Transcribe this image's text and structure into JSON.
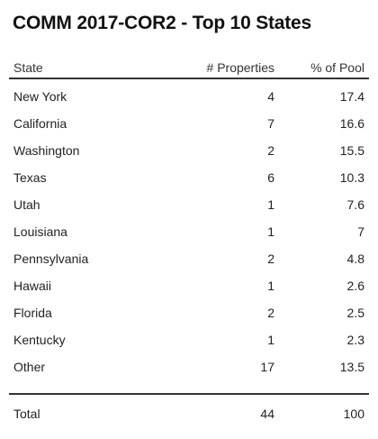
{
  "title": "COMM 2017-COR2 - Top 10 States",
  "columns": {
    "state": "State",
    "properties": "# Properties",
    "pct": "% of Pool"
  },
  "rows": [
    {
      "state": "New York",
      "properties": "4",
      "pct": "17.4"
    },
    {
      "state": "California",
      "properties": "7",
      "pct": "16.6"
    },
    {
      "state": "Washington",
      "properties": "2",
      "pct": "15.5"
    },
    {
      "state": "Texas",
      "properties": "6",
      "pct": "10.3"
    },
    {
      "state": "Utah",
      "properties": "1",
      "pct": "7.6"
    },
    {
      "state": "Louisiana",
      "properties": "1",
      "pct": "7"
    },
    {
      "state": "Pennsylvania",
      "properties": "2",
      "pct": "4.8"
    },
    {
      "state": "Hawaii",
      "properties": "1",
      "pct": "2.6"
    },
    {
      "state": "Florida",
      "properties": "2",
      "pct": "2.5"
    },
    {
      "state": "Kentucky",
      "properties": "1",
      "pct": "2.3"
    },
    {
      "state": "Other",
      "properties": "17",
      "pct": "13.5"
    }
  ],
  "total": {
    "label": "Total",
    "properties": "44",
    "pct": "100"
  }
}
